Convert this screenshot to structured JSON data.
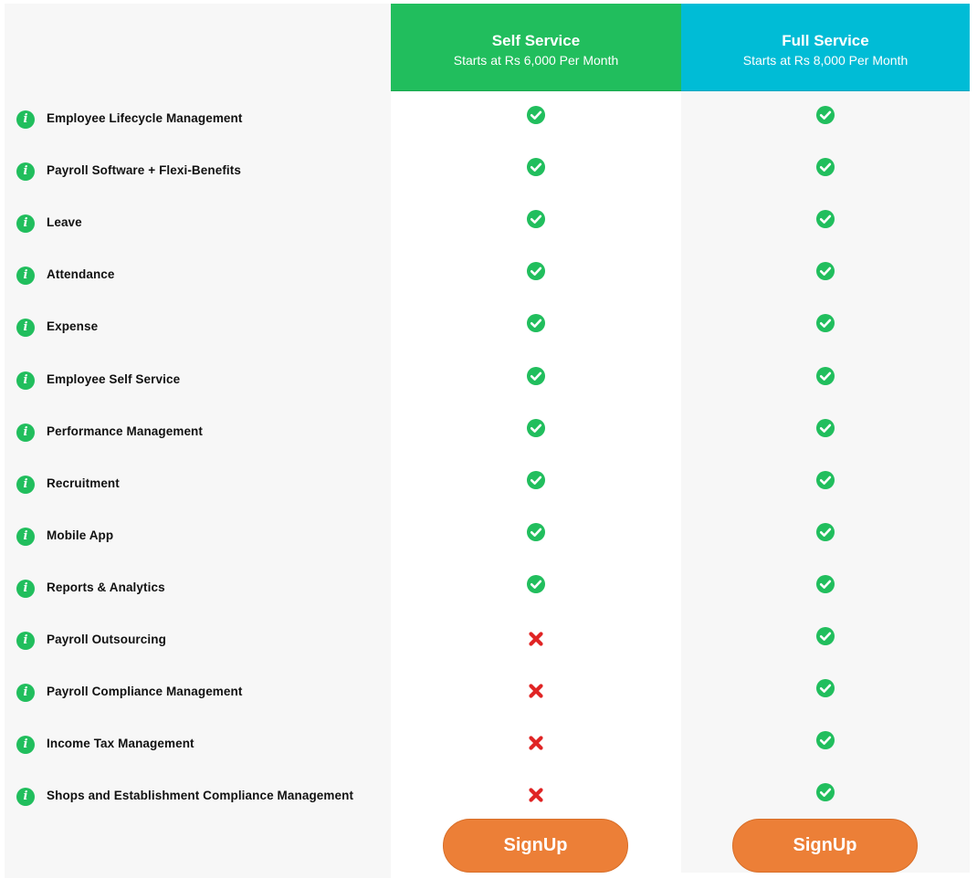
{
  "plans": [
    {
      "name": "Self Service",
      "price": "Starts at Rs 6,000 Per Month",
      "signup_label": "SignUp",
      "header_color": "#21be5d"
    },
    {
      "name": "Full Service",
      "price": "Starts at Rs 8,000 Per Month",
      "signup_label": "SignUp",
      "header_color": "#00bcd6"
    }
  ],
  "features": [
    {
      "label": "Employee Lifecycle Management",
      "self_service": true,
      "full_service": true
    },
    {
      "label": "Payroll Software + Flexi-Benefits",
      "self_service": true,
      "full_service": true
    },
    {
      "label": "Leave",
      "self_service": true,
      "full_service": true
    },
    {
      "label": "Attendance",
      "self_service": true,
      "full_service": true
    },
    {
      "label": "Expense",
      "self_service": true,
      "full_service": true
    },
    {
      "label": "Employee Self Service",
      "self_service": true,
      "full_service": true
    },
    {
      "label": "Performance Management",
      "self_service": true,
      "full_service": true
    },
    {
      "label": "Recruitment",
      "self_service": true,
      "full_service": true
    },
    {
      "label": "Mobile App",
      "self_service": true,
      "full_service": true
    },
    {
      "label": "Reports & Analytics",
      "self_service": true,
      "full_service": true
    },
    {
      "label": "Payroll Outsourcing",
      "self_service": false,
      "full_service": true
    },
    {
      "label": "Payroll Compliance Management",
      "self_service": false,
      "full_service": true
    },
    {
      "label": "Income Tax Management",
      "self_service": false,
      "full_service": true
    },
    {
      "label": "Shops and Establishment Compliance Management",
      "self_service": false,
      "full_service": true
    }
  ],
  "icons": {
    "info": "info-icon",
    "included": "check-circle-icon",
    "excluded": "x-mark-icon"
  },
  "colors": {
    "check": "#21be5d",
    "cross": "#e02424",
    "button": "#ec7f37"
  }
}
